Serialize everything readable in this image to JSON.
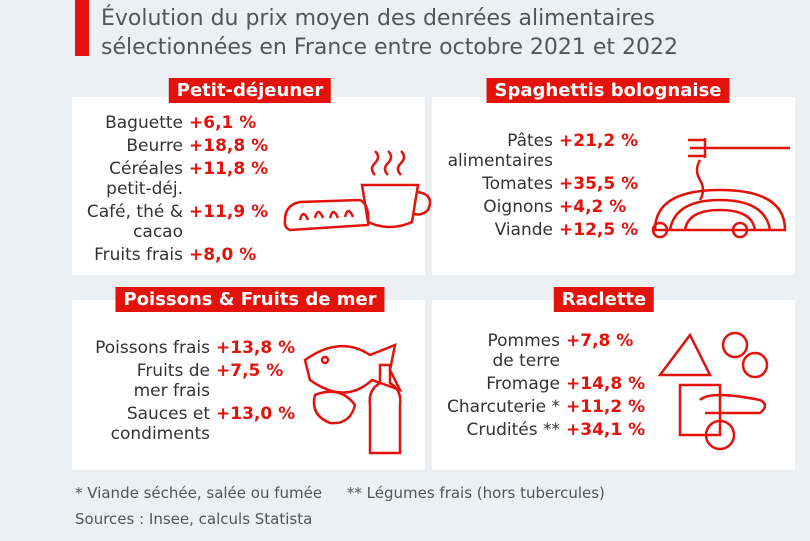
{
  "header": {
    "title_lines": [
      "Évolution du prix moyen des denrées alimentaires",
      "sélectionnées en France entre octobre 2021 et 2022"
    ]
  },
  "panels": [
    {
      "title": "Petit-déjeuner",
      "items": [
        {
          "label": "Baguette",
          "value": "+6,1 %"
        },
        {
          "label": "Beurre",
          "value": "+18,8 %"
        },
        {
          "label": "Céréales\npetit-déj.",
          "value": "+11,8 %"
        },
        {
          "label": "Café, thé &\ncacao",
          "value": "+11,9 %"
        },
        {
          "label": "Fruits frais",
          "value": "+8,0 %"
        }
      ]
    },
    {
      "title": "Spaghettis bolognaise",
      "items": [
        {
          "label": "Pâtes\nalimentaires",
          "value": "+21,2 %"
        },
        {
          "label": "Tomates",
          "value": "+35,5 %"
        },
        {
          "label": "Oignons",
          "value": "+4,2 %"
        },
        {
          "label": "Viande",
          "value": "+12,5 %"
        }
      ]
    },
    {
      "title": "Poissons & Fruits de mer",
      "items": [
        {
          "label": "Poissons frais",
          "value": "+13,8 %"
        },
        {
          "label": "Fruits de\nmer frais",
          "value": "+7,5 %"
        },
        {
          "label": "Sauces et\ncondiments",
          "value": "+13,0 %"
        }
      ]
    },
    {
      "title": "Raclette",
      "items": [
        {
          "label": "Pommes\nde terre",
          "value": "+7,8 %"
        },
        {
          "label": "Fromage",
          "value": "+14,8 %"
        },
        {
          "label": "Charcuterie *",
          "value": "+11,2 %"
        },
        {
          "label": "Crudités **",
          "value": "+34,1 %"
        }
      ]
    }
  ],
  "footer": {
    "notes": [
      "* Viande séchée, salée ou fumée",
      "** Légumes frais (hors tubercules)"
    ],
    "source": "Sources : Insee, calculs Statista"
  }
}
